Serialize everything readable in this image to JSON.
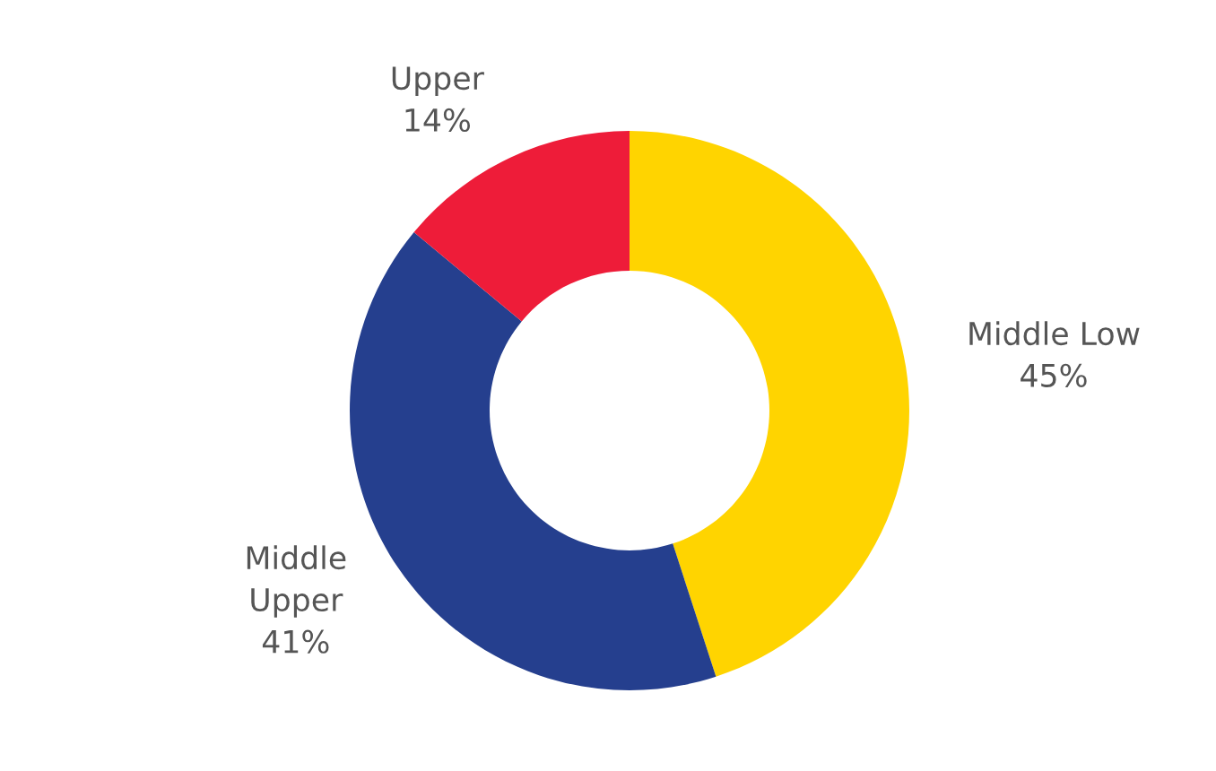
{
  "chart_data": {
    "type": "donut",
    "categories": [
      "Middle Low",
      "Middle Upper",
      "Upper"
    ],
    "values": [
      45,
      41,
      14
    ],
    "colors": [
      "#ffd400",
      "#253f8e",
      "#ee1c39"
    ],
    "value_labels": [
      "45%",
      "41%",
      "14%"
    ]
  }
}
